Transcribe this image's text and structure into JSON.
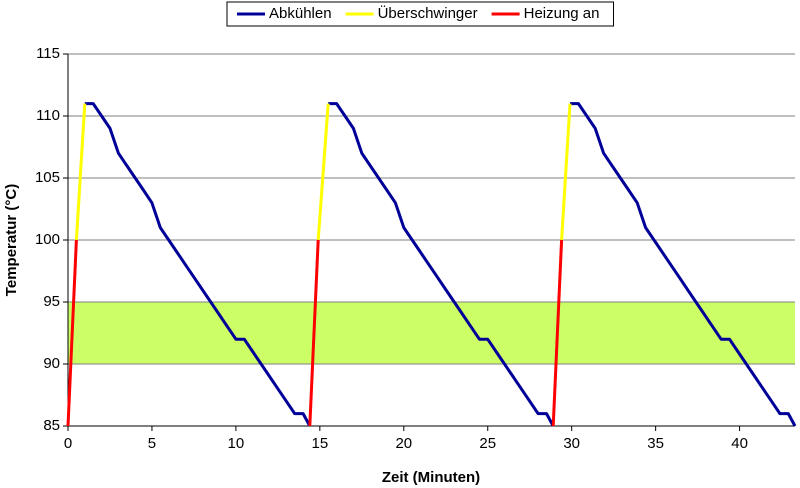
{
  "chart_data": {
    "type": "line",
    "xlabel": "Zeit (Minuten)",
    "ylabel": "Temperatur (°C)",
    "xlim": [
      0,
      43.3
    ],
    "ylim": [
      85,
      115
    ],
    "xticks": [
      0,
      5,
      10,
      15,
      20,
      25,
      30,
      35,
      40
    ],
    "yticks": [
      85,
      90,
      95,
      100,
      105,
      110,
      115
    ],
    "grid": true,
    "legend": "top",
    "band": [
      90,
      95
    ],
    "band_color": "#ccff66",
    "series": [
      {
        "name": "Abkühlen",
        "color": "#000099",
        "x": [
          1,
          1.5,
          2,
          2.5,
          3,
          3.5,
          4,
          4.5,
          5,
          5.5,
          6,
          6.5,
          7,
          7.5,
          8,
          8.5,
          9,
          9.5,
          10,
          10.5,
          11,
          11.5,
          12,
          12.5,
          13,
          13.5,
          14,
          14.4,
          null,
          15.5,
          16,
          16.5,
          17,
          17.5,
          18,
          18.5,
          19,
          19.5,
          20,
          20.5,
          21,
          21.5,
          22,
          22.5,
          23,
          23.5,
          24,
          24.5,
          25,
          25.5,
          26,
          26.5,
          27,
          27.5,
          28,
          28.5,
          28.9,
          null,
          29.9,
          30.4,
          30.9,
          31.4,
          31.9,
          32.4,
          32.9,
          33.4,
          33.9,
          34.4,
          34.9,
          35.4,
          35.9,
          36.4,
          36.9,
          37.4,
          37.9,
          38.4,
          38.9,
          39.4,
          39.9,
          40.4,
          40.9,
          41.4,
          41.9,
          42.4,
          42.9,
          43.3
        ],
        "values": [
          111,
          111,
          110,
          109,
          107,
          106,
          105,
          104,
          103,
          101,
          100,
          99,
          98,
          97,
          96,
          95,
          94,
          93,
          92,
          92,
          91,
          90,
          89,
          88,
          87,
          86,
          86,
          85,
          null,
          111,
          111,
          110,
          109,
          107,
          106,
          105,
          104,
          103,
          101,
          100,
          99,
          98,
          97,
          96,
          95,
          94,
          93,
          92,
          92,
          91,
          90,
          89,
          88,
          87,
          86,
          86,
          85,
          null,
          111,
          111,
          110,
          109,
          107,
          106,
          105,
          104,
          103,
          101,
          100,
          99,
          98,
          97,
          96,
          95,
          94,
          93,
          92,
          92,
          91,
          90,
          89,
          88,
          87,
          86,
          86,
          85
        ]
      },
      {
        "name": "Überschwinger",
        "color": "#ffff00",
        "x": [
          0.5,
          1,
          null,
          14.9,
          15.5,
          null,
          29.4,
          29.9
        ],
        "values": [
          100,
          111,
          null,
          100,
          111,
          null,
          100,
          111
        ]
      },
      {
        "name": "Heizung an",
        "color": "#ff0000",
        "x": [
          0,
          0.5,
          null,
          14.4,
          14.9,
          null,
          28.9,
          29.4
        ],
        "values": [
          85,
          100,
          null,
          85,
          100,
          null,
          85,
          100
        ]
      }
    ]
  }
}
